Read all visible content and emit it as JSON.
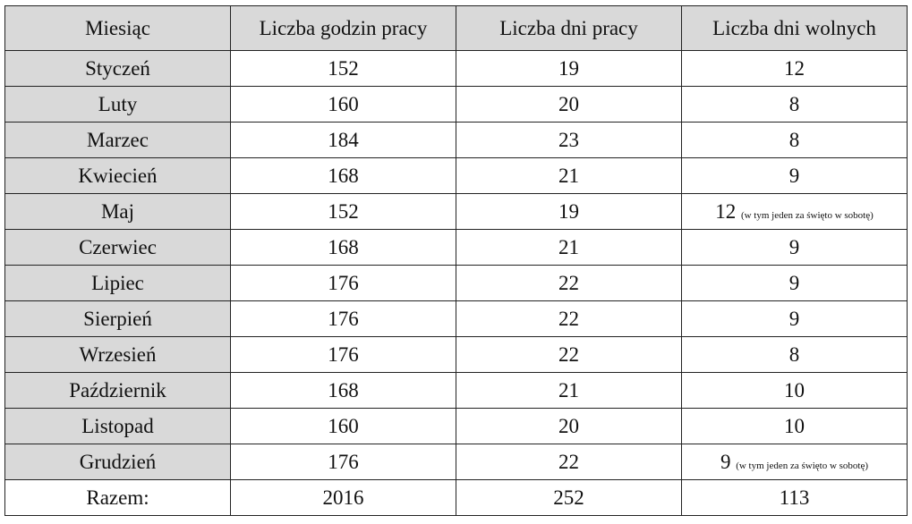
{
  "headers": [
    "Miesiąc",
    "Liczba godzin pracy",
    "Liczba dni pracy",
    "Liczba dni wolnych"
  ],
  "rows": [
    {
      "month": "Styczeń",
      "hours": "152",
      "work_days": "19",
      "free_days": "12",
      "note": ""
    },
    {
      "month": "Luty",
      "hours": "160",
      "work_days": "20",
      "free_days": "8",
      "note": ""
    },
    {
      "month": "Marzec",
      "hours": "184",
      "work_days": "23",
      "free_days": "8",
      "note": ""
    },
    {
      "month": "Kwiecień",
      "hours": "168",
      "work_days": "21",
      "free_days": "9",
      "note": ""
    },
    {
      "month": "Maj",
      "hours": "152",
      "work_days": "19",
      "free_days": "12",
      "note": "(w tym jeden za święto w sobotę)"
    },
    {
      "month": "Czerwiec",
      "hours": "168",
      "work_days": "21",
      "free_days": "9",
      "note": ""
    },
    {
      "month": "Lipiec",
      "hours": "176",
      "work_days": "22",
      "free_days": "9",
      "note": ""
    },
    {
      "month": "Sierpień",
      "hours": "176",
      "work_days": "22",
      "free_days": "9",
      "note": ""
    },
    {
      "month": "Wrzesień",
      "hours": "176",
      "work_days": "22",
      "free_days": "8",
      "note": ""
    },
    {
      "month": "Październik",
      "hours": "168",
      "work_days": "21",
      "free_days": "10",
      "note": ""
    },
    {
      "month": "Listopad",
      "hours": "160",
      "work_days": "20",
      "free_days": "10",
      "note": ""
    },
    {
      "month": "Grudzień",
      "hours": "176",
      "work_days": "22",
      "free_days": "9",
      "note": "(w tym jeden za święto w sobotę)"
    }
  ],
  "total": {
    "month": "Razem:",
    "hours": "2016",
    "work_days": "252",
    "free_days": "113"
  },
  "colors": {
    "header_fill": "#d9d9d9",
    "border": "#222222"
  }
}
